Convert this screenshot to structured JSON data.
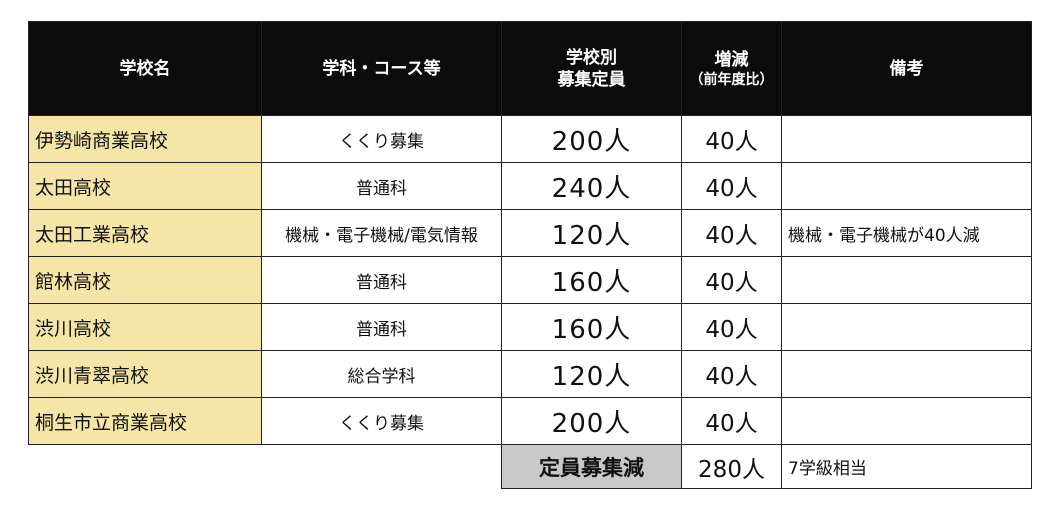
{
  "headers": {
    "school": "学校名",
    "course": "学科・コース等",
    "capacity_line1": "学校別",
    "capacity_line2": "募集定員",
    "change_line1": "増減",
    "change_line2": "（前年度比）",
    "notes": "備考"
  },
  "rows": [
    {
      "school": "伊勢崎商業高校",
      "course": "くくり募集",
      "capacity": "200人",
      "change": "40人",
      "notes": ""
    },
    {
      "school": "太田高校",
      "course": "普通科",
      "capacity": "240人",
      "change": "40人",
      "notes": ""
    },
    {
      "school": "太田工業高校",
      "course": "機械・電子機械/電気情報",
      "capacity": "120人",
      "change": "40人",
      "notes": "機械・電子機械が40人減"
    },
    {
      "school": "館林高校",
      "course": "普通科",
      "capacity": "160人",
      "change": "40人",
      "notes": ""
    },
    {
      "school": "渋川高校",
      "course": "普通科",
      "capacity": "160人",
      "change": "40人",
      "notes": ""
    },
    {
      "school": "渋川青翠高校",
      "course": "総合学科",
      "capacity": "120人",
      "change": "40人",
      "notes": ""
    },
    {
      "school": "桐生市立商業高校",
      "course": "くくり募集",
      "capacity": "200人",
      "change": "40人",
      "notes": ""
    }
  ],
  "summary": {
    "label": "定員募集減",
    "value": "280人",
    "note": "7学級相当"
  },
  "colors": {
    "header_bg": "#0c0c0c",
    "school_bg": "#f5e6a8",
    "summary_label_bg": "#c9c9c9"
  }
}
